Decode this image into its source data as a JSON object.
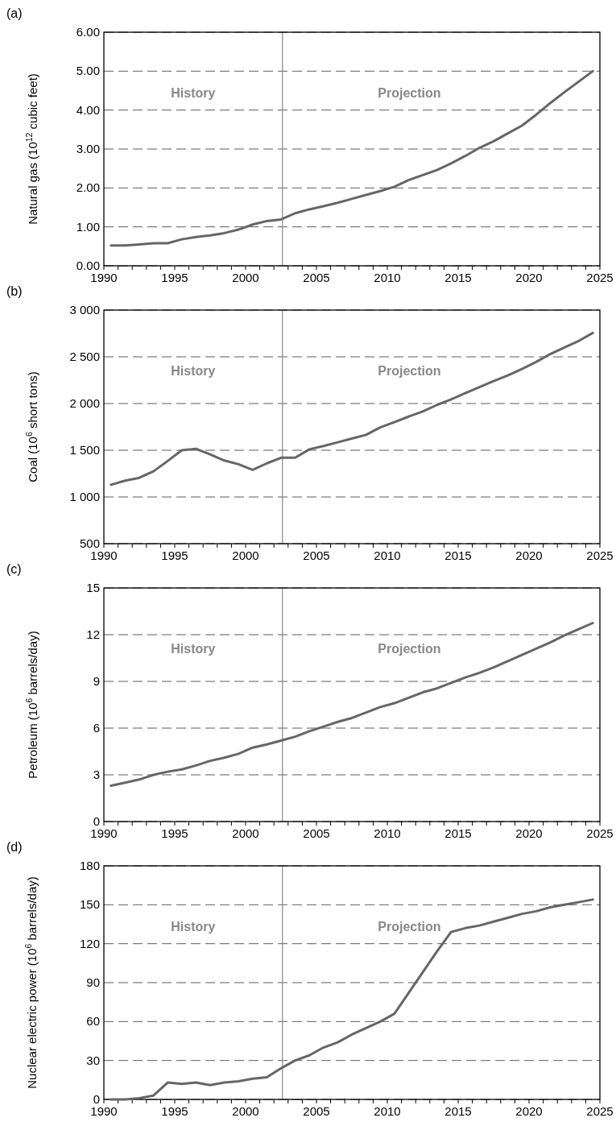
{
  "chart_data": [
    {
      "type": "line",
      "title": "(a)",
      "ylabel": "Natural gas (10$^{12}$ cubic feet)",
      "annotations": [
        "History",
        "Projection"
      ],
      "grid": "y",
      "line_style": "solid",
      "x": [
        1990.5,
        1991.5,
        1992.5,
        1993.5,
        1994.5,
        1995.5,
        1996.5,
        1997.5,
        1998.5,
        1999.5,
        2000.5,
        2001.5,
        2002.5,
        2003.5,
        2004.5,
        2005.5,
        2006.5,
        2007.5,
        2008.5,
        2009.5,
        2010.5,
        2011.5,
        2012.5,
        2013.5,
        2014.5,
        2015.5,
        2016.5,
        2017.5,
        2018.5,
        2019.5,
        2020.5,
        2021.5,
        2022.5,
        2023.5,
        2024.5
      ],
      "series": [
        {
          "color": "#666666",
          "values": [
            0.52,
            0.52,
            0.55,
            0.58,
            0.58,
            0.68,
            0.74,
            0.78,
            0.84,
            0.93,
            1.06,
            1.15,
            1.19,
            1.35,
            1.45,
            1.53,
            1.62,
            1.72,
            1.82,
            1.92,
            2.03,
            2.2,
            2.33,
            2.46,
            2.63,
            2.82,
            3.03,
            3.2,
            3.4,
            3.6,
            3.88,
            4.18,
            4.46,
            4.73,
            5.0
          ]
        }
      ],
      "xlim": [
        1990,
        2025
      ],
      "xticks": [
        1990,
        {
          "value": 1991,
          "label": null
        },
        {
          "value": 1992,
          "label": null
        },
        {
          "value": 1993,
          "label": null
        },
        {
          "value": 1994,
          "label": null
        },
        1995,
        {
          "value": 1996,
          "label": null
        },
        {
          "value": 1997,
          "label": null
        },
        {
          "value": 1998,
          "label": null
        },
        {
          "value": 1999,
          "label": null
        },
        2000,
        {
          "value": 2001,
          "label": null
        },
        {
          "value": 2002,
          "label": null
        },
        {
          "value": 2003,
          "label": null
        },
        {
          "value": 2004,
          "label": null
        },
        2005,
        {
          "value": 2006,
          "label": null
        },
        {
          "value": 2007,
          "label": null
        },
        {
          "value": 2008,
          "label": null
        },
        {
          "value": 2009,
          "label": null
        },
        2010,
        {
          "value": 2011,
          "label": null
        },
        {
          "value": 2012,
          "label": null
        },
        {
          "value": 2013,
          "label": null
        },
        {
          "value": 2014,
          "label": null
        },
        2015,
        {
          "value": 2016,
          "label": null
        },
        {
          "value": 2017,
          "label": null
        },
        {
          "value": 2018,
          "label": null
        },
        {
          "value": 2019,
          "label": null
        },
        2020,
        {
          "value": 2021,
          "label": null
        },
        {
          "value": 2022,
          "label": null
        },
        {
          "value": 2023,
          "label": null
        },
        {
          "value": 2024,
          "label": null
        },
        2025
      ],
      "ylim": [
        0,
        6
      ],
      "yticks": [
        {
          "value": 0,
          "label": "0.00"
        },
        {
          "value": 1,
          "label": "1.00"
        },
        {
          "value": 2,
          "label": "2.00"
        },
        {
          "value": 3,
          "label": "3.00"
        },
        {
          "value": 4,
          "label": "4.00"
        },
        {
          "value": 5,
          "label": "5.00"
        },
        {
          "value": 6,
          "label": "6.00"
        }
      ],
      "ref_lines": [
        {
          "axis": "x",
          "value": 2002.6,
          "color": "#888888"
        }
      ]
    },
    {
      "type": "line",
      "title": "(b)",
      "ylabel": "Coal (10$^{6}$ short tons)",
      "annotations": [
        "History",
        "Projection"
      ],
      "grid": "y",
      "line_style": "solid",
      "x": [
        1990.5,
        1991.5,
        1992.5,
        1993.5,
        1994.5,
        1995.5,
        1996.5,
        1997.5,
        1998.5,
        1999.5,
        2000.5,
        2001.5,
        2002.5,
        2003.5,
        2004.5,
        2005.5,
        2006.5,
        2007.5,
        2008.5,
        2009.5,
        2010.5,
        2011.5,
        2012.5,
        2013.5,
        2014.5,
        2015.5,
        2016.5,
        2017.5,
        2018.5,
        2019.5,
        2020.5,
        2021.5,
        2022.5,
        2023.5,
        2024.5
      ],
      "series": [
        {
          "color": "#666666",
          "values": [
            1130,
            1175,
            1205,
            1275,
            1385,
            1500,
            1515,
            1455,
            1390,
            1350,
            1290,
            1360,
            1420,
            1420,
            1510,
            1545,
            1585,
            1625,
            1665,
            1745,
            1800,
            1860,
            1915,
            1985,
            2045,
            2110,
            2175,
            2240,
            2300,
            2370,
            2445,
            2530,
            2600,
            2670,
            2755
          ]
        }
      ],
      "xlim": [
        1990,
        2025
      ],
      "xticks": [
        1990,
        {
          "value": 1991,
          "label": null
        },
        {
          "value": 1992,
          "label": null
        },
        {
          "value": 1993,
          "label": null
        },
        {
          "value": 1994,
          "label": null
        },
        1995,
        {
          "value": 1996,
          "label": null
        },
        {
          "value": 1997,
          "label": null
        },
        {
          "value": 1998,
          "label": null
        },
        {
          "value": 1999,
          "label": null
        },
        2000,
        {
          "value": 2001,
          "label": null
        },
        {
          "value": 2002,
          "label": null
        },
        {
          "value": 2003,
          "label": null
        },
        {
          "value": 2004,
          "label": null
        },
        2005,
        {
          "value": 2006,
          "label": null
        },
        {
          "value": 2007,
          "label": null
        },
        {
          "value": 2008,
          "label": null
        },
        {
          "value": 2009,
          "label": null
        },
        2010,
        {
          "value": 2011,
          "label": null
        },
        {
          "value": 2012,
          "label": null
        },
        {
          "value": 2013,
          "label": null
        },
        {
          "value": 2014,
          "label": null
        },
        2015,
        {
          "value": 2016,
          "label": null
        },
        {
          "value": 2017,
          "label": null
        },
        {
          "value": 2018,
          "label": null
        },
        {
          "value": 2019,
          "label": null
        },
        2020,
        {
          "value": 2021,
          "label": null
        },
        {
          "value": 2022,
          "label": null
        },
        {
          "value": 2023,
          "label": null
        },
        {
          "value": 2024,
          "label": null
        },
        2025
      ],
      "ylim": [
        500,
        3000
      ],
      "yticks": [
        500,
        {
          "value": 1000,
          "label": "1 000"
        },
        {
          "value": 1500,
          "label": "1 500"
        },
        {
          "value": 2000,
          "label": "2 000"
        },
        {
          "value": 2500,
          "label": "2 500"
        },
        {
          "value": 3000,
          "label": "3 000"
        }
      ],
      "ref_lines": [
        {
          "axis": "x",
          "value": 2002.6,
          "color": "#888888"
        }
      ]
    },
    {
      "type": "line",
      "title": "(c)",
      "ylabel": "Petroleum (10$^{6}$ barrels/day)",
      "annotations": [
        "History",
        "Projection"
      ],
      "grid": "y",
      "line_style": "solid",
      "x": [
        1990.5,
        1991.5,
        1992.5,
        1993.5,
        1994.5,
        1995.5,
        1996.5,
        1997.5,
        1998.5,
        1999.5,
        2000.5,
        2001.5,
        2002.5,
        2003.5,
        2004.5,
        2005.5,
        2006.5,
        2007.5,
        2008.5,
        2009.5,
        2010.5,
        2011.5,
        2012.5,
        2013.5,
        2014.5,
        2015.5,
        2016.5,
        2017.5,
        2018.5,
        2019.5,
        2020.5,
        2021.5,
        2022.5,
        2023.5,
        2024.5
      ],
      "series": [
        {
          "color": "#666666",
          "values": [
            2.3,
            2.5,
            2.7,
            3.0,
            3.2,
            3.35,
            3.6,
            3.9,
            4.1,
            4.35,
            4.75,
            4.95,
            5.2,
            5.45,
            5.8,
            6.1,
            6.4,
            6.65,
            7.0,
            7.35,
            7.6,
            7.95,
            8.3,
            8.55,
            8.9,
            9.25,
            9.55,
            9.9,
            10.3,
            10.7,
            11.1,
            11.5,
            11.95,
            12.35,
            12.75
          ]
        }
      ],
      "xlim": [
        1990,
        2025
      ],
      "xticks": [
        1990,
        {
          "value": 1991,
          "label": null
        },
        {
          "value": 1992,
          "label": null
        },
        {
          "value": 1993,
          "label": null
        },
        {
          "value": 1994,
          "label": null
        },
        1995,
        {
          "value": 1996,
          "label": null
        },
        {
          "value": 1997,
          "label": null
        },
        {
          "value": 1998,
          "label": null
        },
        {
          "value": 1999,
          "label": null
        },
        2000,
        {
          "value": 2001,
          "label": null
        },
        {
          "value": 2002,
          "label": null
        },
        {
          "value": 2003,
          "label": null
        },
        {
          "value": 2004,
          "label": null
        },
        2005,
        {
          "value": 2006,
          "label": null
        },
        {
          "value": 2007,
          "label": null
        },
        {
          "value": 2008,
          "label": null
        },
        {
          "value": 2009,
          "label": null
        },
        2010,
        {
          "value": 2011,
          "label": null
        },
        {
          "value": 2012,
          "label": null
        },
        {
          "value": 2013,
          "label": null
        },
        {
          "value": 2014,
          "label": null
        },
        2015,
        {
          "value": 2016,
          "label": null
        },
        {
          "value": 2017,
          "label": null
        },
        {
          "value": 2018,
          "label": null
        },
        {
          "value": 2019,
          "label": null
        },
        2020,
        {
          "value": 2021,
          "label": null
        },
        {
          "value": 2022,
          "label": null
        },
        {
          "value": 2023,
          "label": null
        },
        {
          "value": 2024,
          "label": null
        },
        2025
      ],
      "ylim": [
        0,
        15
      ],
      "yticks": [
        0,
        3,
        6,
        9,
        12,
        15
      ],
      "ref_lines": [
        {
          "axis": "x",
          "value": 2002.6,
          "color": "#888888"
        }
      ]
    },
    {
      "type": "line",
      "title": "(d)",
      "ylabel": "Nuclear electric power (10$^{6}$ barrels/day)",
      "annotations": [
        "History",
        "Projection"
      ],
      "grid": "y",
      "line_style": "solid",
      "x": [
        1990.5,
        1991.5,
        1992.5,
        1993.5,
        1994.5,
        1995.5,
        1996.5,
        1997.5,
        1998.5,
        1999.5,
        2000.5,
        2001.5,
        2002.5,
        2003.5,
        2004.5,
        2005.5,
        2006.5,
        2007.5,
        2008.5,
        2009.5,
        2010.5,
        2011.5,
        2012.5,
        2013.5,
        2014.5,
        2015.5,
        2016.5,
        2017.5,
        2018.5,
        2019.5,
        2020.5,
        2021.5,
        2022.5,
        2023.5,
        2024.5
      ],
      "series": [
        {
          "color": "#666666",
          "values": [
            0,
            0,
            1,
            3,
            13,
            12,
            13,
            11,
            13,
            14,
            16,
            17,
            24,
            30,
            34,
            40,
            44,
            50,
            55,
            60,
            66,
            82,
            98,
            114,
            129,
            132,
            134,
            137,
            140,
            143,
            145,
            148,
            150,
            152,
            154
          ]
        }
      ],
      "xlim": [
        1990,
        2025
      ],
      "xticks": [
        1990,
        {
          "value": 1991,
          "label": null
        },
        {
          "value": 1992,
          "label": null
        },
        {
          "value": 1993,
          "label": null
        },
        {
          "value": 1994,
          "label": null
        },
        1995,
        {
          "value": 1996,
          "label": null
        },
        {
          "value": 1997,
          "label": null
        },
        {
          "value": 1998,
          "label": null
        },
        {
          "value": 1999,
          "label": null
        },
        2000,
        {
          "value": 2001,
          "label": null
        },
        {
          "value": 2002,
          "label": null
        },
        {
          "value": 2003,
          "label": null
        },
        {
          "value": 2004,
          "label": null
        },
        2005,
        {
          "value": 2006,
          "label": null
        },
        {
          "value": 2007,
          "label": null
        },
        {
          "value": 2008,
          "label": null
        },
        {
          "value": 2009,
          "label": null
        },
        2010,
        {
          "value": 2011,
          "label": null
        },
        {
          "value": 2012,
          "label": null
        },
        {
          "value": 2013,
          "label": null
        },
        {
          "value": 2014,
          "label": null
        },
        2015,
        {
          "value": 2016,
          "label": null
        },
        {
          "value": 2017,
          "label": null
        },
        {
          "value": 2018,
          "label": null
        },
        {
          "value": 2019,
          "label": null
        },
        2020,
        {
          "value": 2021,
          "label": null
        },
        {
          "value": 2022,
          "label": null
        },
        {
          "value": 2023,
          "label": null
        },
        {
          "value": 2024,
          "label": null
        },
        2025
      ],
      "ylim": [
        0,
        180
      ],
      "yticks": [
        0,
        30,
        60,
        90,
        120,
        150,
        180
      ],
      "ref_lines": [
        {
          "axis": "x",
          "value": 2002.6,
          "color": "#888888"
        }
      ]
    }
  ]
}
